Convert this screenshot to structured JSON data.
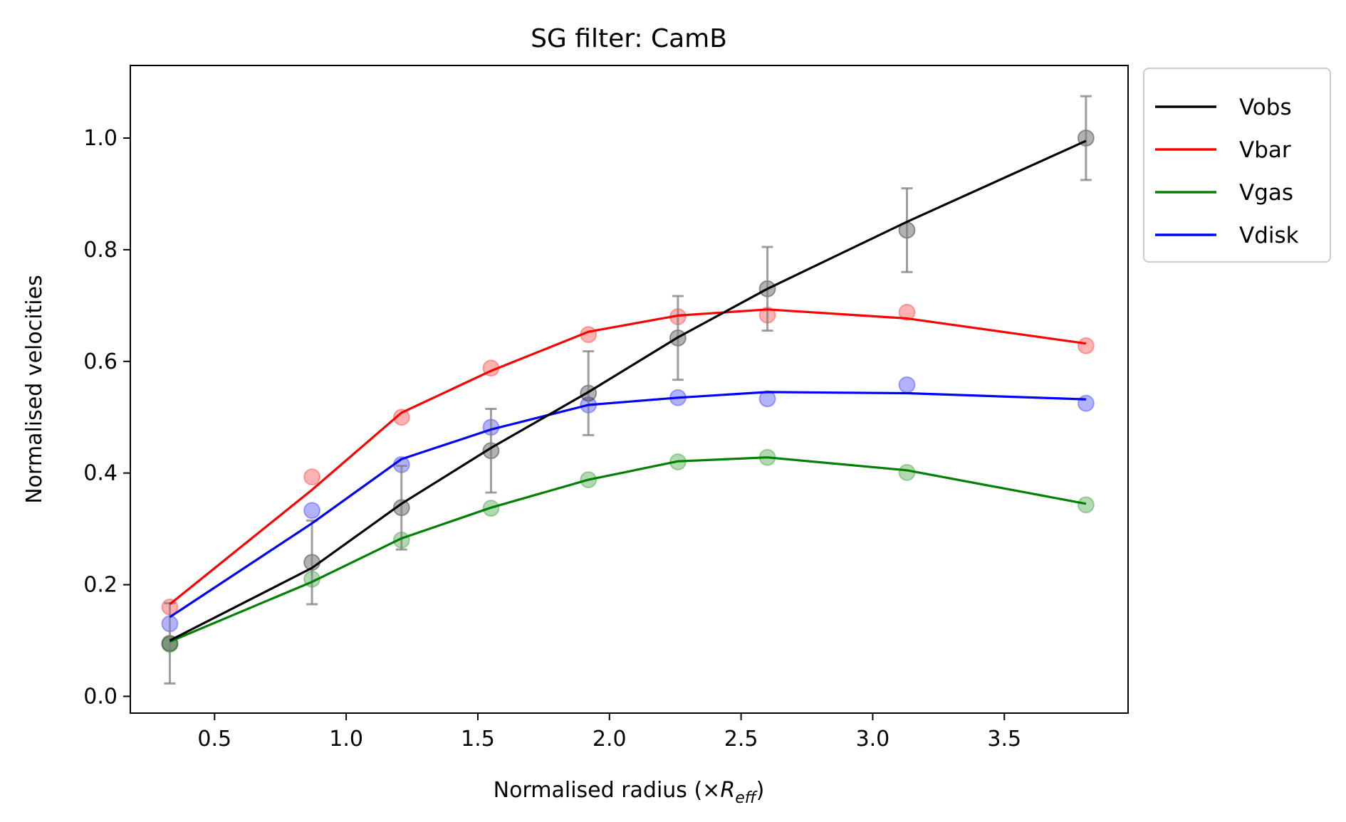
{
  "chart_data": {
    "type": "line",
    "title": "SG filter: CamB",
    "xlabel_prefix": "Normalised radius (×",
    "xlabel_symbol": "R",
    "xlabel_subscript": "eff",
    "xlabel_suffix": ")",
    "ylabel": "Normalised velocities",
    "xlim": [
      0.18,
      3.97
    ],
    "ylim": [
      -0.03,
      1.13
    ],
    "xticks": [
      0.5,
      1.0,
      1.5,
      2.0,
      2.5,
      3.0,
      3.5
    ],
    "xtick_labels": [
      "0.5",
      "1.0",
      "1.5",
      "2.0",
      "2.5",
      "3.0",
      "3.5"
    ],
    "yticks": [
      0.0,
      0.2,
      0.4,
      0.6,
      0.8,
      1.0
    ],
    "ytick_labels": [
      "0.0",
      "0.2",
      "0.4",
      "0.6",
      "0.8",
      "1.0"
    ],
    "grid": false,
    "legend_position": "outside-right-top",
    "x": [
      0.33,
      0.87,
      1.21,
      1.55,
      1.92,
      2.26,
      2.6,
      3.13,
      3.81
    ],
    "series": [
      {
        "name": "Vobs",
        "color": "#000000",
        "points": [
          0.095,
          0.24,
          0.338,
          0.44,
          0.543,
          0.642,
          0.73,
          0.835,
          1.0
        ],
        "line": [
          0.1,
          0.23,
          0.345,
          0.445,
          0.545,
          0.643,
          0.73,
          0.85,
          0.995
        ],
        "errors": [
          0.072,
          0.075,
          0.075,
          0.075,
          0.075,
          0.075,
          0.075,
          0.075,
          0.075
        ]
      },
      {
        "name": "Vbar",
        "color": "#ff0000",
        "points": [
          0.16,
          0.393,
          0.5,
          0.588,
          0.648,
          0.68,
          0.683,
          0.688,
          0.628
        ],
        "line": [
          0.165,
          0.37,
          0.508,
          0.583,
          0.653,
          0.682,
          0.693,
          0.677,
          0.632
        ]
      },
      {
        "name": "Vgas",
        "color": "#008000",
        "points": [
          0.093,
          0.21,
          0.28,
          0.337,
          0.388,
          0.42,
          0.428,
          0.401,
          0.343
        ],
        "line": [
          0.098,
          0.205,
          0.283,
          0.338,
          0.388,
          0.421,
          0.428,
          0.405,
          0.345
        ]
      },
      {
        "name": "Vdisk",
        "color": "#0000ff",
        "points": [
          0.13,
          0.333,
          0.415,
          0.482,
          0.522,
          0.535,
          0.533,
          0.558,
          0.525
        ],
        "line": [
          0.142,
          0.31,
          0.425,
          0.478,
          0.522,
          0.535,
          0.545,
          0.543,
          0.532
        ]
      }
    ]
  }
}
